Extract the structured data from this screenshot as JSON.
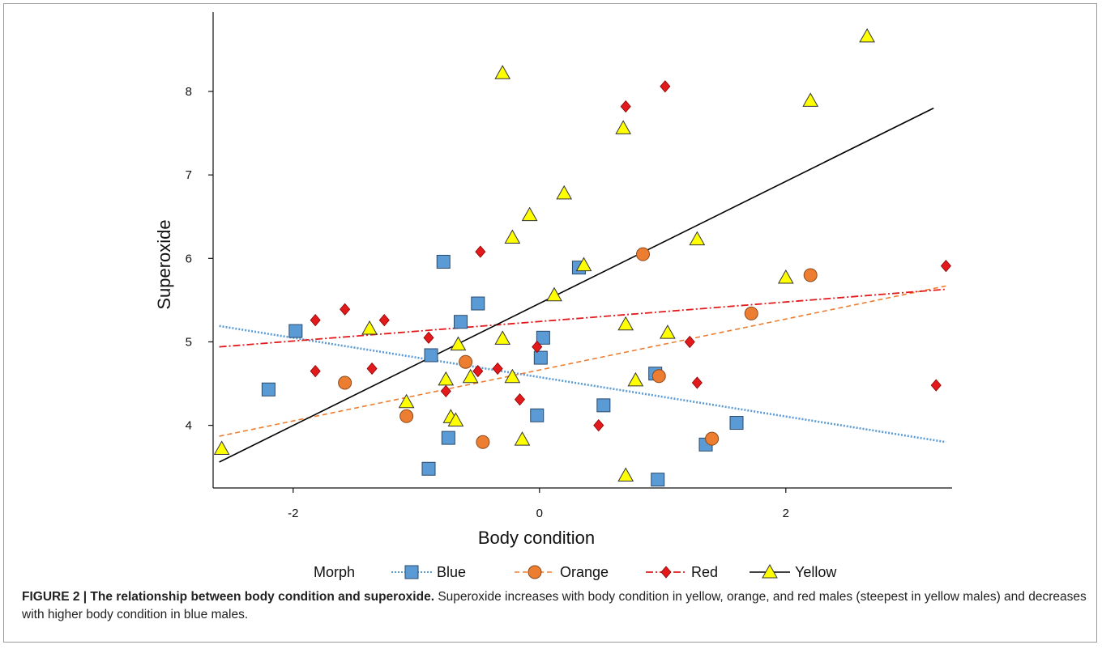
{
  "chart_data": {
    "type": "scatter",
    "xlabel": "Body condition",
    "ylabel": "Superoxide",
    "xlim": [
      -2.65,
      3.35
    ],
    "ylim": [
      3.25,
      8.95
    ],
    "xticks": [
      -2,
      0,
      2
    ],
    "yticks": [
      4,
      5,
      6,
      7,
      8
    ],
    "legend": {
      "title": "Morph",
      "placement": "bottom"
    },
    "series": [
      {
        "name": "Blue",
        "marker": "square",
        "color": "#5b9bd5",
        "line_style": "dotted",
        "fit": {
          "x": [
            -2.6,
            3.3
          ],
          "y": [
            5.19,
            3.8
          ]
        },
        "points": [
          {
            "x": -2.2,
            "y": 4.43
          },
          {
            "x": -1.98,
            "y": 5.13
          },
          {
            "x": -0.88,
            "y": 4.84
          },
          {
            "x": -0.78,
            "y": 5.96
          },
          {
            "x": -0.74,
            "y": 3.85
          },
          {
            "x": -0.9,
            "y": 3.48
          },
          {
            "x": -0.5,
            "y": 5.46
          },
          {
            "x": -0.64,
            "y": 5.24
          },
          {
            "x": 0.32,
            "y": 5.89
          },
          {
            "x": 0.03,
            "y": 5.05
          },
          {
            "x": 0.01,
            "y": 4.81
          },
          {
            "x": -0.02,
            "y": 4.12
          },
          {
            "x": 0.52,
            "y": 4.24
          },
          {
            "x": 0.94,
            "y": 4.62
          },
          {
            "x": 1.35,
            "y": 3.77
          },
          {
            "x": 1.6,
            "y": 4.03
          },
          {
            "x": 0.96,
            "y": 3.35
          }
        ]
      },
      {
        "name": "Orange",
        "marker": "circle",
        "color": "#ed7d31",
        "line_style": "dashed",
        "fit": {
          "x": [
            -2.6,
            3.3
          ],
          "y": [
            3.87,
            5.67
          ]
        },
        "points": [
          {
            "x": -1.58,
            "y": 4.51
          },
          {
            "x": -1.08,
            "y": 4.11
          },
          {
            "x": -0.6,
            "y": 4.76
          },
          {
            "x": -0.46,
            "y": 3.8
          },
          {
            "x": 0.84,
            "y": 6.05
          },
          {
            "x": 0.97,
            "y": 4.59
          },
          {
            "x": 1.4,
            "y": 3.84
          },
          {
            "x": 1.72,
            "y": 5.34
          },
          {
            "x": 2.2,
            "y": 5.8
          }
        ]
      },
      {
        "name": "Red",
        "marker": "diamond",
        "color": "#e31a1c",
        "line_style": "dash-dot",
        "fit": {
          "x": [
            -2.6,
            3.3
          ],
          "y": [
            4.94,
            5.63
          ]
        },
        "points": [
          {
            "x": -1.82,
            "y": 5.26
          },
          {
            "x": -1.58,
            "y": 5.39
          },
          {
            "x": -1.82,
            "y": 4.65
          },
          {
            "x": -1.36,
            "y": 4.68
          },
          {
            "x": -1.26,
            "y": 5.26
          },
          {
            "x": -0.9,
            "y": 5.05
          },
          {
            "x": -0.76,
            "y": 4.41
          },
          {
            "x": -0.48,
            "y": 6.08
          },
          {
            "x": -0.5,
            "y": 4.65
          },
          {
            "x": -0.34,
            "y": 4.68
          },
          {
            "x": -0.16,
            "y": 4.31
          },
          {
            "x": -0.02,
            "y": 4.94
          },
          {
            "x": 0.48,
            "y": 4.0
          },
          {
            "x": 0.7,
            "y": 7.82
          },
          {
            "x": 1.02,
            "y": 8.06
          },
          {
            "x": 1.22,
            "y": 5.0
          },
          {
            "x": 1.28,
            "y": 4.51
          },
          {
            "x": 3.3,
            "y": 5.91
          },
          {
            "x": 3.22,
            "y": 4.48
          }
        ]
      },
      {
        "name": "Yellow",
        "marker": "triangle",
        "color": "#ffff00",
        "line_style": "solid",
        "fit": {
          "x": [
            -2.6,
            3.2
          ],
          "y": [
            3.56,
            7.8
          ]
        },
        "points": [
          {
            "x": -2.58,
            "y": 3.72
          },
          {
            "x": -1.38,
            "y": 5.16
          },
          {
            "x": -1.08,
            "y": 4.28
          },
          {
            "x": -0.76,
            "y": 4.55
          },
          {
            "x": -0.72,
            "y": 4.1
          },
          {
            "x": -0.68,
            "y": 4.06
          },
          {
            "x": -0.66,
            "y": 4.97
          },
          {
            "x": -0.56,
            "y": 4.58
          },
          {
            "x": -0.3,
            "y": 8.22
          },
          {
            "x": -0.3,
            "y": 5.04
          },
          {
            "x": -0.22,
            "y": 6.25
          },
          {
            "x": -0.22,
            "y": 4.58
          },
          {
            "x": -0.14,
            "y": 3.83
          },
          {
            "x": -0.08,
            "y": 6.52
          },
          {
            "x": 0.12,
            "y": 5.56
          },
          {
            "x": 0.2,
            "y": 6.78
          },
          {
            "x": 0.36,
            "y": 5.92
          },
          {
            "x": 0.68,
            "y": 7.56
          },
          {
            "x": 0.7,
            "y": 5.21
          },
          {
            "x": 0.7,
            "y": 3.4
          },
          {
            "x": 0.78,
            "y": 4.54
          },
          {
            "x": 1.04,
            "y": 5.11
          },
          {
            "x": 1.28,
            "y": 6.23
          },
          {
            "x": 2.0,
            "y": 5.77
          },
          {
            "x": 2.2,
            "y": 7.89
          },
          {
            "x": 2.66,
            "y": 8.66
          }
        ]
      }
    ]
  },
  "caption": {
    "label": "FIGURE 2 | The relationship between body condition and superoxide.",
    "text": " Superoxide increases with body condition in yellow, orange, and red males (steepest in yellow males) and decreases with higher body condition in blue males."
  }
}
